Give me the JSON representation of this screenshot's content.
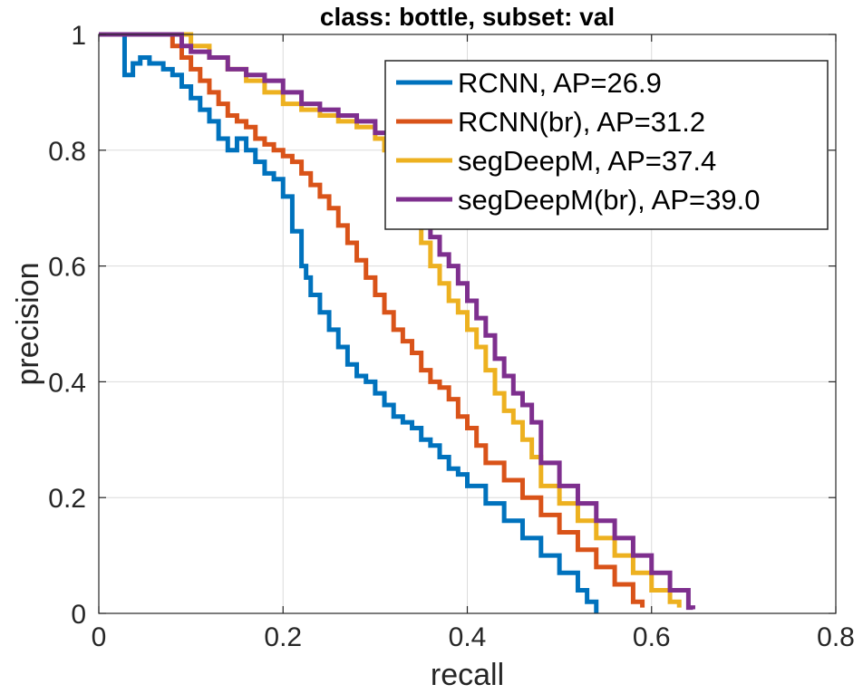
{
  "chart_data": {
    "type": "line",
    "title": "class: bottle, subset: val",
    "xlabel": "recall",
    "ylabel": "precision",
    "xlim": [
      0,
      0.8
    ],
    "ylim": [
      0,
      1
    ],
    "xticks": [
      0,
      0.2,
      0.4,
      0.6,
      0.8
    ],
    "xtick_labels": [
      "0",
      "0.2",
      "0.4",
      "0.6",
      "0.8"
    ],
    "yticks": [
      0,
      0.2,
      0.4,
      0.6,
      0.8,
      1
    ],
    "ytick_labels": [
      "0",
      "0.2",
      "0.4",
      "0.6",
      "0.8",
      "1"
    ],
    "grid": true,
    "legend_position": "top-right",
    "series": [
      {
        "name": "RCNN, AP=26.9",
        "color": "#0072BD",
        "x": [
          0,
          0.028,
          0.028,
          0.037,
          0.045,
          0.055,
          0.07,
          0.08,
          0.09,
          0.1,
          0.11,
          0.12,
          0.13,
          0.14,
          0.15,
          0.16,
          0.17,
          0.18,
          0.19,
          0.2,
          0.21,
          0.22,
          0.225,
          0.23,
          0.24,
          0.25,
          0.26,
          0.27,
          0.28,
          0.29,
          0.3,
          0.31,
          0.32,
          0.33,
          0.34,
          0.35,
          0.36,
          0.37,
          0.38,
          0.39,
          0.4,
          0.42,
          0.44,
          0.46,
          0.48,
          0.5,
          0.52,
          0.53,
          0.54
        ],
        "y": [
          1,
          1,
          0.93,
          0.95,
          0.96,
          0.95,
          0.94,
          0.93,
          0.91,
          0.89,
          0.87,
          0.85,
          0.82,
          0.8,
          0.82,
          0.8,
          0.78,
          0.76,
          0.75,
          0.72,
          0.66,
          0.6,
          0.58,
          0.55,
          0.52,
          0.49,
          0.46,
          0.43,
          0.41,
          0.4,
          0.38,
          0.36,
          0.34,
          0.33,
          0.32,
          0.3,
          0.29,
          0.27,
          0.25,
          0.24,
          0.22,
          0.19,
          0.16,
          0.13,
          0.1,
          0.07,
          0.04,
          0.02,
          0
        ]
      },
      {
        "name": "RCNN(br), AP=31.2",
        "color": "#D95319",
        "x": [
          0,
          0.075,
          0.08,
          0.09,
          0.1,
          0.11,
          0.12,
          0.13,
          0.14,
          0.15,
          0.16,
          0.17,
          0.18,
          0.19,
          0.2,
          0.21,
          0.22,
          0.23,
          0.24,
          0.25,
          0.26,
          0.27,
          0.28,
          0.29,
          0.3,
          0.31,
          0.32,
          0.33,
          0.34,
          0.35,
          0.36,
          0.37,
          0.38,
          0.39,
          0.4,
          0.41,
          0.42,
          0.44,
          0.46,
          0.48,
          0.5,
          0.52,
          0.54,
          0.56,
          0.58,
          0.59
        ],
        "y": [
          1,
          1,
          0.98,
          0.96,
          0.94,
          0.92,
          0.9,
          0.88,
          0.86,
          0.85,
          0.84,
          0.82,
          0.81,
          0.8,
          0.79,
          0.78,
          0.76,
          0.74,
          0.72,
          0.7,
          0.67,
          0.64,
          0.61,
          0.58,
          0.55,
          0.52,
          0.49,
          0.47,
          0.45,
          0.42,
          0.4,
          0.39,
          0.37,
          0.34,
          0.32,
          0.29,
          0.26,
          0.23,
          0.2,
          0.17,
          0.14,
          0.11,
          0.08,
          0.05,
          0.02,
          0.01
        ]
      },
      {
        "name": "segDeepM, AP=37.4",
        "color": "#EDB120",
        "x": [
          0,
          0.085,
          0.1,
          0.12,
          0.14,
          0.16,
          0.18,
          0.2,
          0.22,
          0.24,
          0.26,
          0.28,
          0.3,
          0.31,
          0.32,
          0.33,
          0.34,
          0.35,
          0.36,
          0.37,
          0.38,
          0.39,
          0.4,
          0.41,
          0.42,
          0.43,
          0.44,
          0.45,
          0.46,
          0.47,
          0.48,
          0.5,
          0.52,
          0.54,
          0.56,
          0.58,
          0.6,
          0.62,
          0.63
        ],
        "y": [
          1,
          1,
          0.98,
          0.96,
          0.94,
          0.92,
          0.9,
          0.88,
          0.87,
          0.86,
          0.85,
          0.84,
          0.82,
          0.8,
          0.78,
          0.76,
          0.7,
          0.64,
          0.6,
          0.57,
          0.54,
          0.52,
          0.49,
          0.46,
          0.42,
          0.38,
          0.35,
          0.33,
          0.3,
          0.27,
          0.22,
          0.19,
          0.16,
          0.13,
          0.1,
          0.07,
          0.04,
          0.02,
          0.01
        ]
      },
      {
        "name": "segDeepM(br), AP=39.0",
        "color": "#7E2F8E",
        "x": [
          0,
          0.085,
          0.09,
          0.1,
          0.12,
          0.14,
          0.16,
          0.18,
          0.2,
          0.22,
          0.24,
          0.26,
          0.28,
          0.3,
          0.32,
          0.33,
          0.34,
          0.35,
          0.36,
          0.37,
          0.38,
          0.39,
          0.4,
          0.41,
          0.42,
          0.43,
          0.44,
          0.45,
          0.46,
          0.47,
          0.48,
          0.5,
          0.52,
          0.54,
          0.56,
          0.58,
          0.6,
          0.62,
          0.64,
          0.645
        ],
        "y": [
          1,
          1,
          0.98,
          0.97,
          0.96,
          0.94,
          0.93,
          0.92,
          0.9,
          0.88,
          0.87,
          0.86,
          0.85,
          0.83,
          0.8,
          0.76,
          0.72,
          0.68,
          0.65,
          0.62,
          0.6,
          0.57,
          0.54,
          0.51,
          0.48,
          0.44,
          0.41,
          0.38,
          0.36,
          0.33,
          0.26,
          0.22,
          0.19,
          0.16,
          0.13,
          0.1,
          0.07,
          0.04,
          0.01,
          0.007
        ]
      }
    ]
  }
}
